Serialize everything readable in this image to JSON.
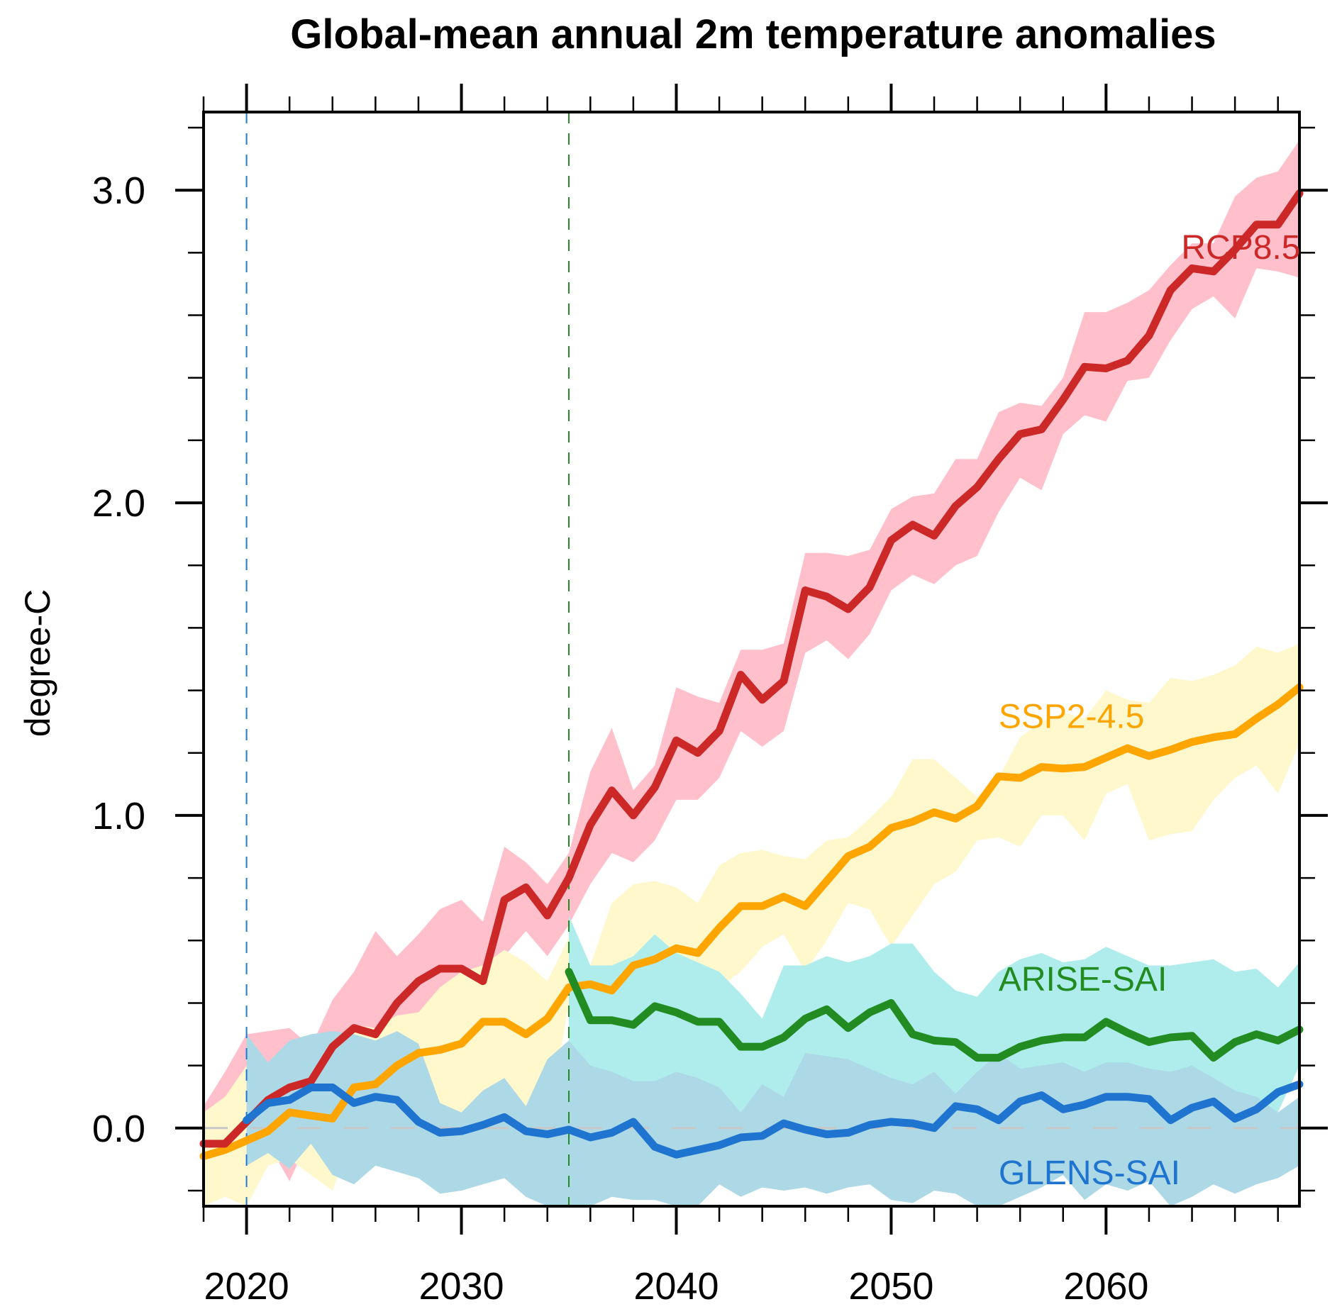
{
  "chart_data": {
    "type": "line",
    "title": "Global-mean annual 2m temperature anomalies",
    "xlabel": "",
    "ylabel": "degree-C",
    "xlim": [
      2018,
      2069
    ],
    "ylim": [
      -0.25,
      3.25
    ],
    "x_major_ticks": [
      2020,
      2030,
      2040,
      2050,
      2060
    ],
    "x_tick_labels": [
      "2020",
      "2030",
      "2040",
      "2050",
      "2060"
    ],
    "x_minor_step": 2,
    "y_major_ticks": [
      0.0,
      1.0,
      2.0,
      3.0
    ],
    "y_tick_labels": [
      "0.0",
      "1.0",
      "2.0",
      "3.0"
    ],
    "y_minor_step": 0.2,
    "grid": false,
    "legend": "inline labels at right",
    "reference_lines": [
      {
        "type": "vertical",
        "x": 2020,
        "color": "#1f78d1",
        "style": "dashed"
      },
      {
        "type": "vertical",
        "x": 2035,
        "color": "#228b22",
        "style": "dashed"
      },
      {
        "type": "horizontal",
        "y": 0.0,
        "color": "#c8c8c8",
        "style": "dashed"
      }
    ],
    "series": [
      {
        "name": "RCP8.5",
        "color": "#cc2828",
        "band_color": "#ffc0cb",
        "label_at": [
          2063.5,
          2.78
        ],
        "x_start": 2018,
        "values": [
          -0.05,
          -0.05,
          0.02,
          0.09,
          0.13,
          0.15,
          0.26,
          0.32,
          0.3,
          0.4,
          0.47,
          0.51,
          0.51,
          0.47,
          0.73,
          0.77,
          0.68,
          0.8,
          0.97,
          1.08,
          1.0,
          1.09,
          1.24,
          1.2,
          1.27,
          1.45,
          1.37,
          1.43,
          1.72,
          1.7,
          1.66,
          1.73,
          1.88,
          1.93,
          1.895,
          1.99,
          2.05,
          2.14,
          2.22,
          2.235,
          2.33,
          2.435,
          2.43,
          2.455,
          2.535,
          2.68,
          2.75,
          2.74,
          2.81,
          2.89,
          2.89,
          2.99
        ],
        "band_lower": [
          -0.15,
          -0.13,
          -0.1,
          -0.05,
          -0.17,
          -0.02,
          0.1,
          0.17,
          0.15,
          0.22,
          0.3,
          0.35,
          0.33,
          0.3,
          0.55,
          0.63,
          0.55,
          0.65,
          0.78,
          0.88,
          0.85,
          0.92,
          1.05,
          1.05,
          1.12,
          1.27,
          1.22,
          1.27,
          1.52,
          1.56,
          1.5,
          1.58,
          1.72,
          1.77,
          1.74,
          1.8,
          1.83,
          1.97,
          2.08,
          2.04,
          2.22,
          2.28,
          2.26,
          2.39,
          2.4,
          2.52,
          2.62,
          2.66,
          2.59,
          2.75,
          2.74,
          2.72
        ],
        "band_upper": [
          0.07,
          0.18,
          0.3,
          0.31,
          0.32,
          0.26,
          0.41,
          0.5,
          0.63,
          0.55,
          0.62,
          0.7,
          0.73,
          0.66,
          0.9,
          0.85,
          0.78,
          0.88,
          1.14,
          1.28,
          1.08,
          1.16,
          1.41,
          1.38,
          1.36,
          1.53,
          1.53,
          1.55,
          1.84,
          1.84,
          1.83,
          1.85,
          1.98,
          2.02,
          2.03,
          2.14,
          2.14,
          2.29,
          2.32,
          2.31,
          2.4,
          2.61,
          2.61,
          2.64,
          2.68,
          2.76,
          2.83,
          2.83,
          2.98,
          3.04,
          3.06,
          3.16
        ]
      },
      {
        "name": "SSP2-4.5",
        "color": "#ffa500",
        "band_color": "#fff8cc",
        "label_at": [
          2055,
          1.28
        ],
        "x_start": 2018,
        "values": [
          -0.09,
          -0.07,
          -0.04,
          -0.01,
          0.05,
          0.04,
          0.03,
          0.13,
          0.14,
          0.2,
          0.24,
          0.25,
          0.27,
          0.34,
          0.34,
          0.3,
          0.35,
          0.45,
          0.46,
          0.44,
          0.52,
          0.54,
          0.575,
          0.56,
          0.64,
          0.71,
          0.71,
          0.74,
          0.71,
          0.79,
          0.87,
          0.9,
          0.96,
          0.98,
          1.01,
          0.99,
          1.03,
          1.125,
          1.12,
          1.155,
          1.15,
          1.155,
          1.185,
          1.215,
          1.19,
          1.21,
          1.235,
          1.25,
          1.26,
          1.31,
          1.355,
          1.41
        ],
        "band_lower": [
          -0.25,
          -0.22,
          -0.28,
          -0.12,
          -0.1,
          -0.15,
          -0.2,
          -0.02,
          0.02,
          0.03,
          0.05,
          -0.1,
          -0.05,
          0.05,
          0.1,
          -0.08,
          0.0,
          0.4,
          0.28,
          0.33,
          0.28,
          0.38,
          0.35,
          0.48,
          0.45,
          0.5,
          0.58,
          0.62,
          0.5,
          0.6,
          0.72,
          0.7,
          0.58,
          0.68,
          0.78,
          0.82,
          0.92,
          0.93,
          0.9,
          1.0,
          1.0,
          0.92,
          1.07,
          1.1,
          0.92,
          0.94,
          0.95,
          1.05,
          1.12,
          1.16,
          1.07,
          1.23
        ],
        "band_upper": [
          0.05,
          0.1,
          0.2,
          0.18,
          0.28,
          0.27,
          0.25,
          0.33,
          0.32,
          0.36,
          0.37,
          0.45,
          0.5,
          0.52,
          0.57,
          0.53,
          0.47,
          0.61,
          0.52,
          0.72,
          0.78,
          0.79,
          0.77,
          0.72,
          0.84,
          0.88,
          0.89,
          0.87,
          0.86,
          0.92,
          0.93,
          0.99,
          1.06,
          1.18,
          1.18,
          1.12,
          1.06,
          1.12,
          1.25,
          1.3,
          1.33,
          1.31,
          1.4,
          1.37,
          1.36,
          1.44,
          1.43,
          1.45,
          1.48,
          1.54,
          1.52,
          1.55
        ]
      },
      {
        "name": "ARISE-SAI",
        "color": "#228b22",
        "band_color": "#afeded",
        "label_at": [
          2055,
          0.44
        ],
        "x_start": 2035,
        "values": [
          0.5,
          0.345,
          0.345,
          0.33,
          0.39,
          0.37,
          0.34,
          0.34,
          0.26,
          0.26,
          0.29,
          0.35,
          0.38,
          0.32,
          0.37,
          0.4,
          0.3,
          0.28,
          0.275,
          0.225,
          0.225,
          0.26,
          0.28,
          0.29,
          0.29,
          0.34,
          0.305,
          0.275,
          0.29,
          0.295,
          0.225,
          0.275,
          0.3,
          0.28,
          0.315
        ],
        "band_lower": [
          0.28,
          0.08,
          0.05,
          0.07,
          0.0,
          0.1,
          0.05,
          -0.04,
          -0.03,
          -0.04,
          -0.07,
          0.1,
          0.12,
          0.05,
          0.02,
          0.03,
          0.05,
          0.0,
          -0.06,
          -0.3,
          0.0,
          0.0,
          -0.04,
          -0.04,
          -0.05,
          0.06,
          0.03,
          0.05,
          -0.02,
          -0.05,
          -0.15,
          0.05,
          0.03,
          0.05,
          0.2
        ],
        "band_upper": [
          0.68,
          0.52,
          0.52,
          0.55,
          0.62,
          0.56,
          0.53,
          0.5,
          0.43,
          0.35,
          0.52,
          0.52,
          0.55,
          0.53,
          0.55,
          0.59,
          0.59,
          0.5,
          0.44,
          0.42,
          0.5,
          0.54,
          0.56,
          0.53,
          0.54,
          0.58,
          0.55,
          0.52,
          0.52,
          0.53,
          0.54,
          0.5,
          0.51,
          0.45,
          0.53
        ]
      },
      {
        "name": "GLENS-SAI",
        "color": "#1e74cf",
        "band_color": "#add8e6",
        "label_at": [
          2055,
          -0.18
        ],
        "x_start": 2020,
        "values": [
          0.025,
          0.08,
          0.09,
          0.13,
          0.13,
          0.08,
          0.1,
          0.09,
          0.02,
          -0.015,
          -0.01,
          0.01,
          0.035,
          -0.01,
          -0.02,
          -0.005,
          -0.03,
          -0.015,
          0.02,
          -0.06,
          -0.085,
          -0.07,
          -0.055,
          -0.03,
          -0.025,
          0.015,
          -0.005,
          -0.02,
          -0.015,
          0.01,
          0.02,
          0.015,
          0.0,
          0.07,
          0.06,
          0.025,
          0.085,
          0.105,
          0.06,
          0.075,
          0.1,
          0.1,
          0.093,
          0.025,
          0.065,
          0.085,
          0.03,
          0.06,
          0.115,
          0.14
        ],
        "band_lower": [
          -0.12,
          -0.08,
          -0.13,
          -0.05,
          -0.15,
          -0.18,
          -0.12,
          -0.14,
          -0.16,
          -0.21,
          -0.2,
          -0.18,
          -0.16,
          -0.22,
          -0.26,
          -0.28,
          -0.28,
          -0.22,
          -0.23,
          -0.23,
          -0.27,
          -0.25,
          -0.18,
          -0.22,
          -0.19,
          -0.2,
          -0.19,
          -0.21,
          -0.19,
          -0.18,
          -0.23,
          -0.24,
          -0.2,
          -0.21,
          -0.26,
          -0.3,
          -0.22,
          -0.19,
          -0.15,
          -0.23,
          -0.18,
          -0.2,
          -0.17,
          -0.28,
          -0.22,
          -0.18,
          -0.21,
          -0.18,
          -0.16,
          -0.12
        ],
        "band_upper": [
          0.3,
          0.21,
          0.28,
          0.3,
          0.31,
          0.3,
          0.28,
          0.31,
          0.27,
          0.08,
          0.05,
          0.12,
          0.16,
          0.07,
          0.22,
          0.28,
          0.2,
          0.18,
          0.15,
          0.15,
          0.18,
          0.16,
          0.13,
          0.05,
          0.14,
          0.1,
          0.24,
          0.23,
          0.22,
          0.19,
          0.16,
          0.14,
          0.18,
          0.11,
          0.18,
          0.24,
          0.19,
          0.2,
          0.21,
          0.18,
          0.21,
          0.21,
          0.19,
          0.18,
          0.2,
          0.16,
          0.12,
          0.1,
          0.05,
          0.1
        ]
      }
    ]
  }
}
